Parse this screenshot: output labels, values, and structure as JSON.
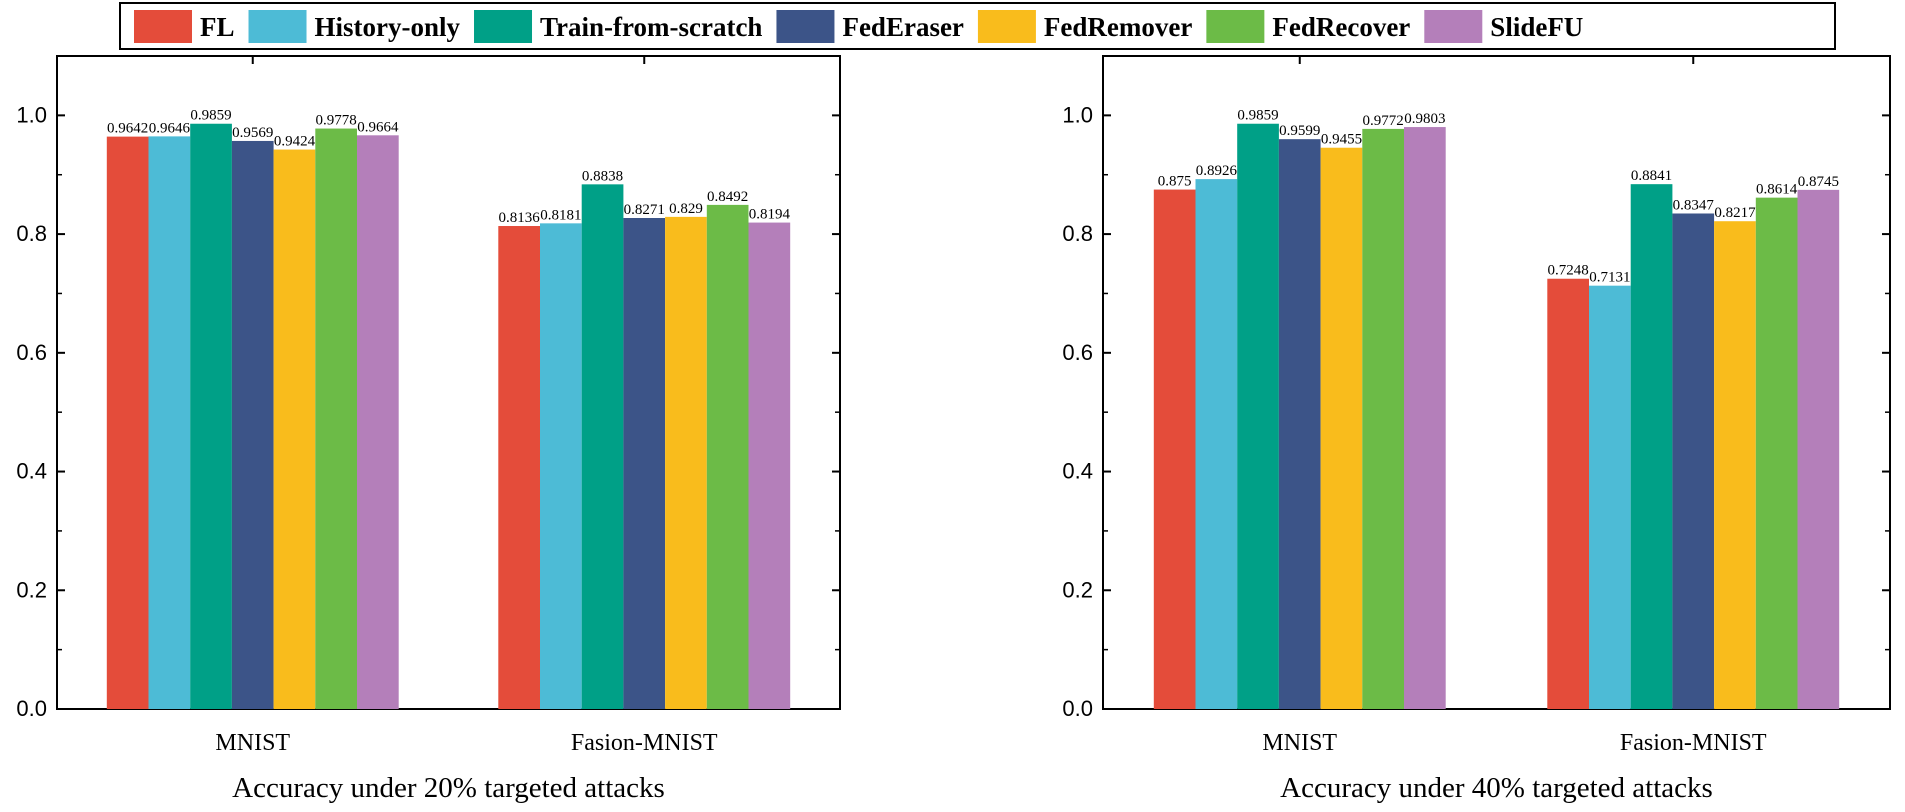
{
  "legend": {
    "position": "top-center"
  },
  "chart_data": [
    {
      "type": "bar",
      "title": "Accuracy under 20% targeted attacks",
      "xlabel": "",
      "ylabel": "",
      "ylim": [
        0,
        1.1
      ],
      "yticks": [
        "0.0",
        "0.2",
        "0.4",
        "0.6",
        "0.8",
        "1.0"
      ],
      "categories": [
        "MNIST",
        "Fasion-MNIST"
      ],
      "series": [
        {
          "name": "FL",
          "color": "#E44C3A",
          "values": [
            0.9642,
            0.8136
          ],
          "labels": [
            "0.9642",
            "0.8136"
          ]
        },
        {
          "name": "History-only",
          "color": "#4DBBD6",
          "values": [
            0.9646,
            0.8181
          ],
          "labels": [
            "0.9646",
            "0.8181"
          ]
        },
        {
          "name": "Train-from-scratch",
          "color": "#00A087",
          "values": [
            0.9859,
            0.8838
          ],
          "labels": [
            "0.9859",
            "0.8838"
          ]
        },
        {
          "name": "FedEraser",
          "color": "#3C5488",
          "values": [
            0.9569,
            0.8271
          ],
          "labels": [
            "0.9569",
            "0.8271"
          ]
        },
        {
          "name": "FedRemover",
          "color": "#F9BC1C",
          "values": [
            0.9424,
            0.829
          ],
          "labels": [
            "0.9424",
            "0.829"
          ]
        },
        {
          "name": "FedRecover",
          "color": "#6CBB47",
          "values": [
            0.9778,
            0.8492
          ],
          "labels": [
            "0.9778",
            "0.8492"
          ]
        },
        {
          "name": "SlideFU",
          "color": "#B47FBA",
          "values": [
            0.9664,
            0.8194
          ],
          "labels": [
            "0.9664",
            "0.8194"
          ]
        }
      ]
    },
    {
      "type": "bar",
      "title": "Accuracy under 40% targeted attacks",
      "xlabel": "",
      "ylabel": "",
      "ylim": [
        0,
        1.1
      ],
      "yticks": [
        "0.0",
        "0.2",
        "0.4",
        "0.6",
        "0.8",
        "1.0"
      ],
      "categories": [
        "MNIST",
        "Fasion-MNIST"
      ],
      "series": [
        {
          "name": "FL",
          "color": "#E44C3A",
          "values": [
            0.875,
            0.7248
          ],
          "labels": [
            "0.875",
            "0.7248"
          ]
        },
        {
          "name": "History-only",
          "color": "#4DBBD6",
          "values": [
            0.8926,
            0.7131
          ],
          "labels": [
            "0.8926",
            "0.7131"
          ]
        },
        {
          "name": "Train-from-scratch",
          "color": "#00A087",
          "values": [
            0.9859,
            0.8841
          ],
          "labels": [
            "0.9859",
            "0.8841"
          ]
        },
        {
          "name": "FedEraser",
          "color": "#3C5488",
          "values": [
            0.9599,
            0.8347
          ],
          "labels": [
            "0.9599",
            "0.8347"
          ]
        },
        {
          "name": "FedRemover",
          "color": "#F9BC1C",
          "values": [
            0.9455,
            0.8217
          ],
          "labels": [
            "0.9455",
            "0.8217"
          ]
        },
        {
          "name": "FedRecover",
          "color": "#6CBB47",
          "values": [
            0.9772,
            0.8614
          ],
          "labels": [
            "0.9772",
            "0.8614"
          ]
        },
        {
          "name": "SlideFU",
          "color": "#B47FBA",
          "values": [
            0.9803,
            0.8745
          ],
          "labels": [
            "0.9803",
            "0.8745"
          ]
        }
      ]
    }
  ]
}
